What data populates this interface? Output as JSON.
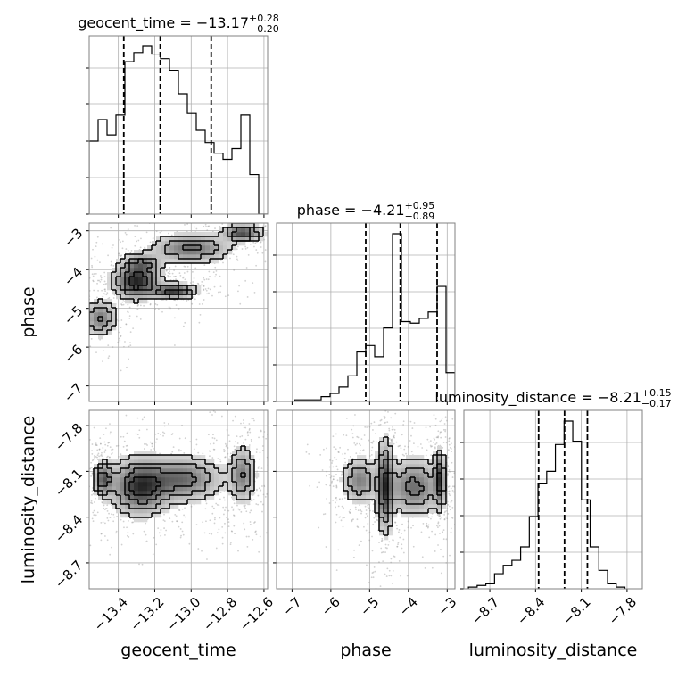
{
  "chart_data": {
    "type": "corner",
    "grid": true,
    "parameters": [
      {
        "name": "geocent_time",
        "xlabel": "geocent_time",
        "title_prefix": "geocent_time = ",
        "median": "−13.17",
        "plus": "+0.28",
        "minus": "−0.20",
        "range": [
          -13.56,
          -12.58
        ],
        "ticks": [
          -13.4,
          -13.2,
          -13.0,
          -12.8,
          -12.6
        ],
        "tick_labels": [
          "−13.4",
          "−13.2",
          "−13.0",
          "−12.8",
          "−12.6"
        ],
        "quantiles": [
          -13.37,
          -13.17,
          -12.89
        ],
        "hist_edges_start": -13.56,
        "hist_bin_width": 0.049,
        "hist_counts": [
          0.48,
          0.62,
          0.52,
          0.65,
          1.0,
          1.06,
          1.1,
          1.05,
          1.02,
          0.94,
          0.79,
          0.66,
          0.55,
          0.47,
          0.4,
          0.36,
          0.43,
          0.65,
          0.26,
          0.0
        ]
      },
      {
        "name": "phase",
        "xlabel": "phase",
        "ylabel": "phase",
        "title_prefix": "phase = ",
        "median": "−4.21",
        "plus": "+0.95",
        "minus": "−0.89",
        "range": [
          -7.4,
          -2.8
        ],
        "ticks": [
          -7,
          -6,
          -5,
          -4,
          -3
        ],
        "tick_labels": [
          "−7",
          "−6",
          "−5",
          "−4",
          "−3"
        ],
        "quantiles": [
          -5.1,
          -4.21,
          -3.26
        ],
        "hist_edges_start": -7.4,
        "hist_bin_width": 0.23,
        "hist_counts": [
          0.0,
          0.0,
          0.01,
          0.01,
          0.01,
          0.03,
          0.05,
          0.09,
          0.16,
          0.31,
          0.35,
          0.28,
          0.46,
          1.05,
          0.5,
          0.49,
          0.52,
          0.56,
          0.72,
          0.18
        ]
      },
      {
        "name": "luminosity_distance",
        "xlabel": "luminosity_distance",
        "ylabel": "luminosity_distance",
        "title_prefix": "luminosity_distance = ",
        "median": "−8.21",
        "plus": "+0.15",
        "minus": "−0.17",
        "range": [
          -8.87,
          -7.7
        ],
        "ticks": [
          -8.7,
          -8.4,
          -8.1,
          -7.8
        ],
        "tick_labels": [
          "−8.7",
          "−8.4",
          "−8.1",
          "−7.8"
        ],
        "quantiles": [
          -8.38,
          -8.21,
          -8.06
        ],
        "hist_edges_start": -8.84,
        "hist_bin_width": 0.057,
        "hist_counts": [
          0.01,
          0.02,
          0.03,
          0.09,
          0.14,
          0.17,
          0.25,
          0.43,
          0.63,
          0.7,
          0.86,
          1.0,
          0.88,
          0.53,
          0.25,
          0.11,
          0.03,
          0.01
        ]
      }
    ],
    "pairs": [
      {
        "x": "geocent_time",
        "y": "phase",
        "dense_regions": [
          {
            "x": -13.3,
            "y": -4.3,
            "sx": 0.07,
            "sy": 0.25,
            "w": 1.0
          },
          {
            "x": -13.1,
            "y": -4.55,
            "sx": 0.07,
            "sy": 0.1,
            "w": 0.9
          },
          {
            "x": -13.27,
            "y": -3.85,
            "sx": 0.06,
            "sy": 0.15,
            "w": 0.5
          },
          {
            "x": -13.0,
            "y": -3.45,
            "sx": 0.12,
            "sy": 0.2,
            "w": 0.6
          },
          {
            "x": -12.72,
            "y": -3.05,
            "sx": 0.06,
            "sy": 0.12,
            "w": 0.8
          },
          {
            "x": -13.5,
            "y": -5.25,
            "sx": 0.05,
            "sy": 0.25,
            "w": 0.55
          }
        ]
      },
      {
        "x": "geocent_time",
        "y": "luminosity_distance",
        "dense_regions": [
          {
            "x": -13.48,
            "y": -8.15,
            "sx": 0.03,
            "sy": 0.06,
            "w": 0.8
          },
          {
            "x": -13.28,
            "y": -8.2,
            "sx": 0.09,
            "sy": 0.1,
            "w": 1.0
          },
          {
            "x": -13.05,
            "y": -8.15,
            "sx": 0.12,
            "sy": 0.08,
            "w": 0.7
          },
          {
            "x": -12.72,
            "y": -8.12,
            "sx": 0.04,
            "sy": 0.1,
            "w": 0.6
          }
        ]
      },
      {
        "x": "phase",
        "y": "luminosity_distance",
        "dense_regions": [
          {
            "x": -5.25,
            "y": -8.16,
            "sx": 0.25,
            "sy": 0.08,
            "w": 0.6
          },
          {
            "x": -4.6,
            "y": -8.2,
            "sx": 0.12,
            "sy": 0.16,
            "w": 1.0
          },
          {
            "x": -3.85,
            "y": -8.2,
            "sx": 0.4,
            "sy": 0.1,
            "w": 0.7
          },
          {
            "x": -3.2,
            "y": -8.15,
            "sx": 0.08,
            "sy": 0.1,
            "w": 0.9
          }
        ]
      }
    ]
  }
}
